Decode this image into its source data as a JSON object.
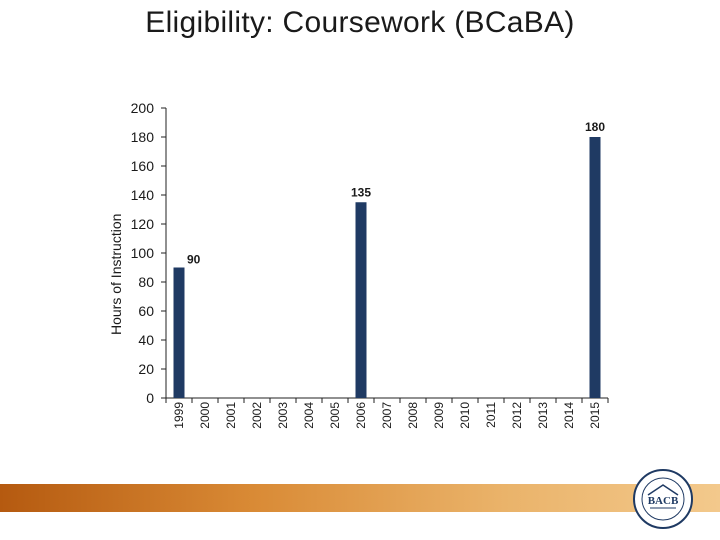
{
  "title": "Eligibility: Coursework (BCaBA)",
  "logo": {
    "text": "BACB",
    "ring_text": "BEHAVIOR ANALYST CERTIFICATION BOARD"
  },
  "colors": {
    "bar": "#1f3a63",
    "axis": "#222222",
    "footer_start": "#b55a10",
    "footer_end": "#f3c98c"
  },
  "chart_data": {
    "type": "bar",
    "title": "Eligibility: Coursework (BCaBA)",
    "xlabel": "",
    "ylabel": "Hours of Instruction",
    "ylim": [
      0,
      200
    ],
    "yticks": [
      0,
      20,
      40,
      60,
      80,
      100,
      120,
      140,
      160,
      180,
      200
    ],
    "categories": [
      "1999",
      "2000",
      "2001",
      "2002",
      "2003",
      "2004",
      "2005",
      "2006",
      "2007",
      "2008",
      "2009",
      "2010",
      "2011",
      "2012",
      "2013",
      "2014",
      "2015"
    ],
    "values": [
      90,
      0,
      0,
      0,
      0,
      0,
      0,
      135,
      0,
      0,
      0,
      0,
      0,
      0,
      0,
      0,
      180
    ],
    "data_labels": [
      {
        "category": "1999",
        "label": "90"
      },
      {
        "category": "2006",
        "label": "135"
      },
      {
        "category": "2015",
        "label": "180"
      }
    ],
    "grid": false,
    "legend": "none"
  }
}
